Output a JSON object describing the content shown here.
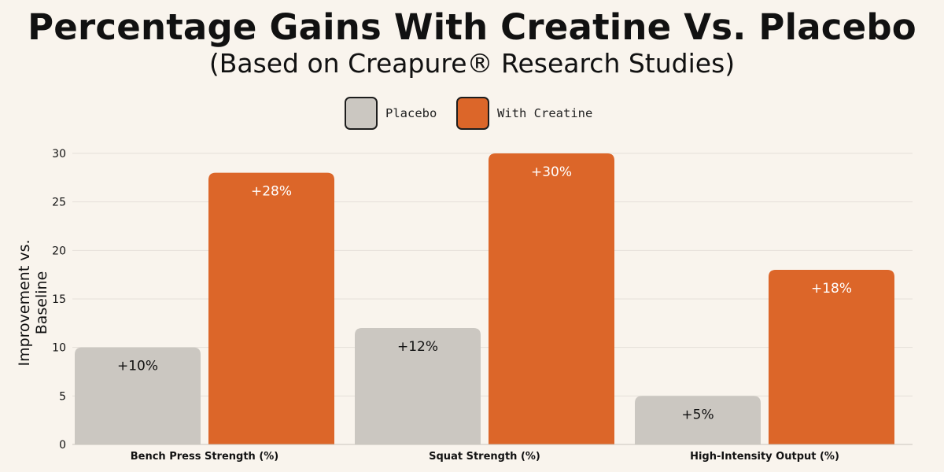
{
  "title": "Percentage Gains With Creatine Vs. Placebo",
  "subtitle": "(Based on Creapure® Research Studies)",
  "colors": {
    "placebo": "#cbc7c1",
    "creatine": "#dc6629",
    "background": "#f9f4ed",
    "grid": "#e5e0d9"
  },
  "chart_data": {
    "type": "bar",
    "title": "Percentage Gains With Creatine Vs. Placebo",
    "subtitle": "(Based on Creapure® Research Studies)",
    "categories": [
      "Bench Press Strength (%)",
      "Squat Strength (%)",
      "High-Intensity Output (%)"
    ],
    "series": [
      {
        "name": "Placebo",
        "values": [
          10,
          12,
          5
        ],
        "labels": [
          "+10%",
          "+12%",
          "+5%"
        ],
        "color": "#cbc7c1",
        "label_color": "#111111"
      },
      {
        "name": "With Creatine",
        "values": [
          28,
          30,
          18
        ],
        "labels": [
          "+28%",
          "+30%",
          "+18%"
        ],
        "color": "#dc6629",
        "label_color": "#ffffff"
      }
    ],
    "xlabel": "",
    "ylabel": "Improvement vs. Baseline",
    "ylim": [
      0,
      30
    ],
    "yticks": [
      0,
      5,
      10,
      15,
      20,
      25,
      30
    ],
    "grid": true,
    "legend": "top-center"
  }
}
